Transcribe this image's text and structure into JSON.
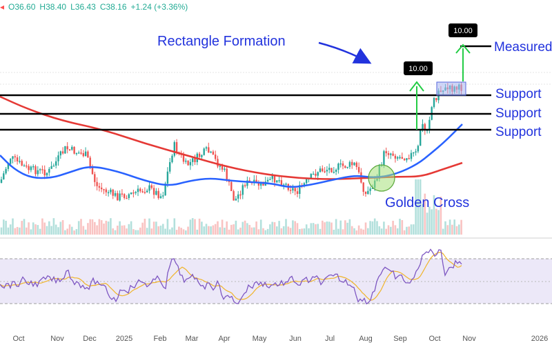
{
  "header": {
    "open": "O36.60",
    "high": "H38.40",
    "low": "L36.43",
    "close": "C38.16",
    "change": "+1.24 (+3.36%)"
  },
  "annotations": {
    "rectangle_formation": "Rectangle Formation",
    "golden_cross": "Golden Cross",
    "measured_move": "Measured",
    "support_1": "Support",
    "support_2": "Support",
    "support_3": "Support",
    "box_1": "10.00",
    "box_2": "10.00"
  },
  "colors": {
    "up": "#26a69a",
    "down": "#ef5350",
    "ma_fast": "#2962ff",
    "ma_slow": "#e53935",
    "annotation_blue": "#2233dd",
    "arrow_green": "#22cc44",
    "rsi": "#7e57c2",
    "rsi_ma": "#f0b429",
    "rsi_band": "#ece8f8"
  },
  "chart_data": {
    "type": "candlestick",
    "x_tick_labels": [
      "Oct",
      "Nov",
      "Dec",
      "2025",
      "Feb",
      "Mar",
      "Apr",
      "May",
      "Jun",
      "Jul",
      "Aug",
      "Sep",
      "Oct",
      "Nov",
      "2026"
    ],
    "support_levels": [
      29.1,
      26.6,
      24.6
    ],
    "rectangle_formation_range": [
      29.1,
      30.3
    ],
    "measured_move": 10.0,
    "measured_move_target": 39.3,
    "ma_fast_end": 25.5,
    "ma_slow_end": 18.0,
    "rsi_panel": {
      "upper_band": 70,
      "lower_band": 30
    }
  }
}
